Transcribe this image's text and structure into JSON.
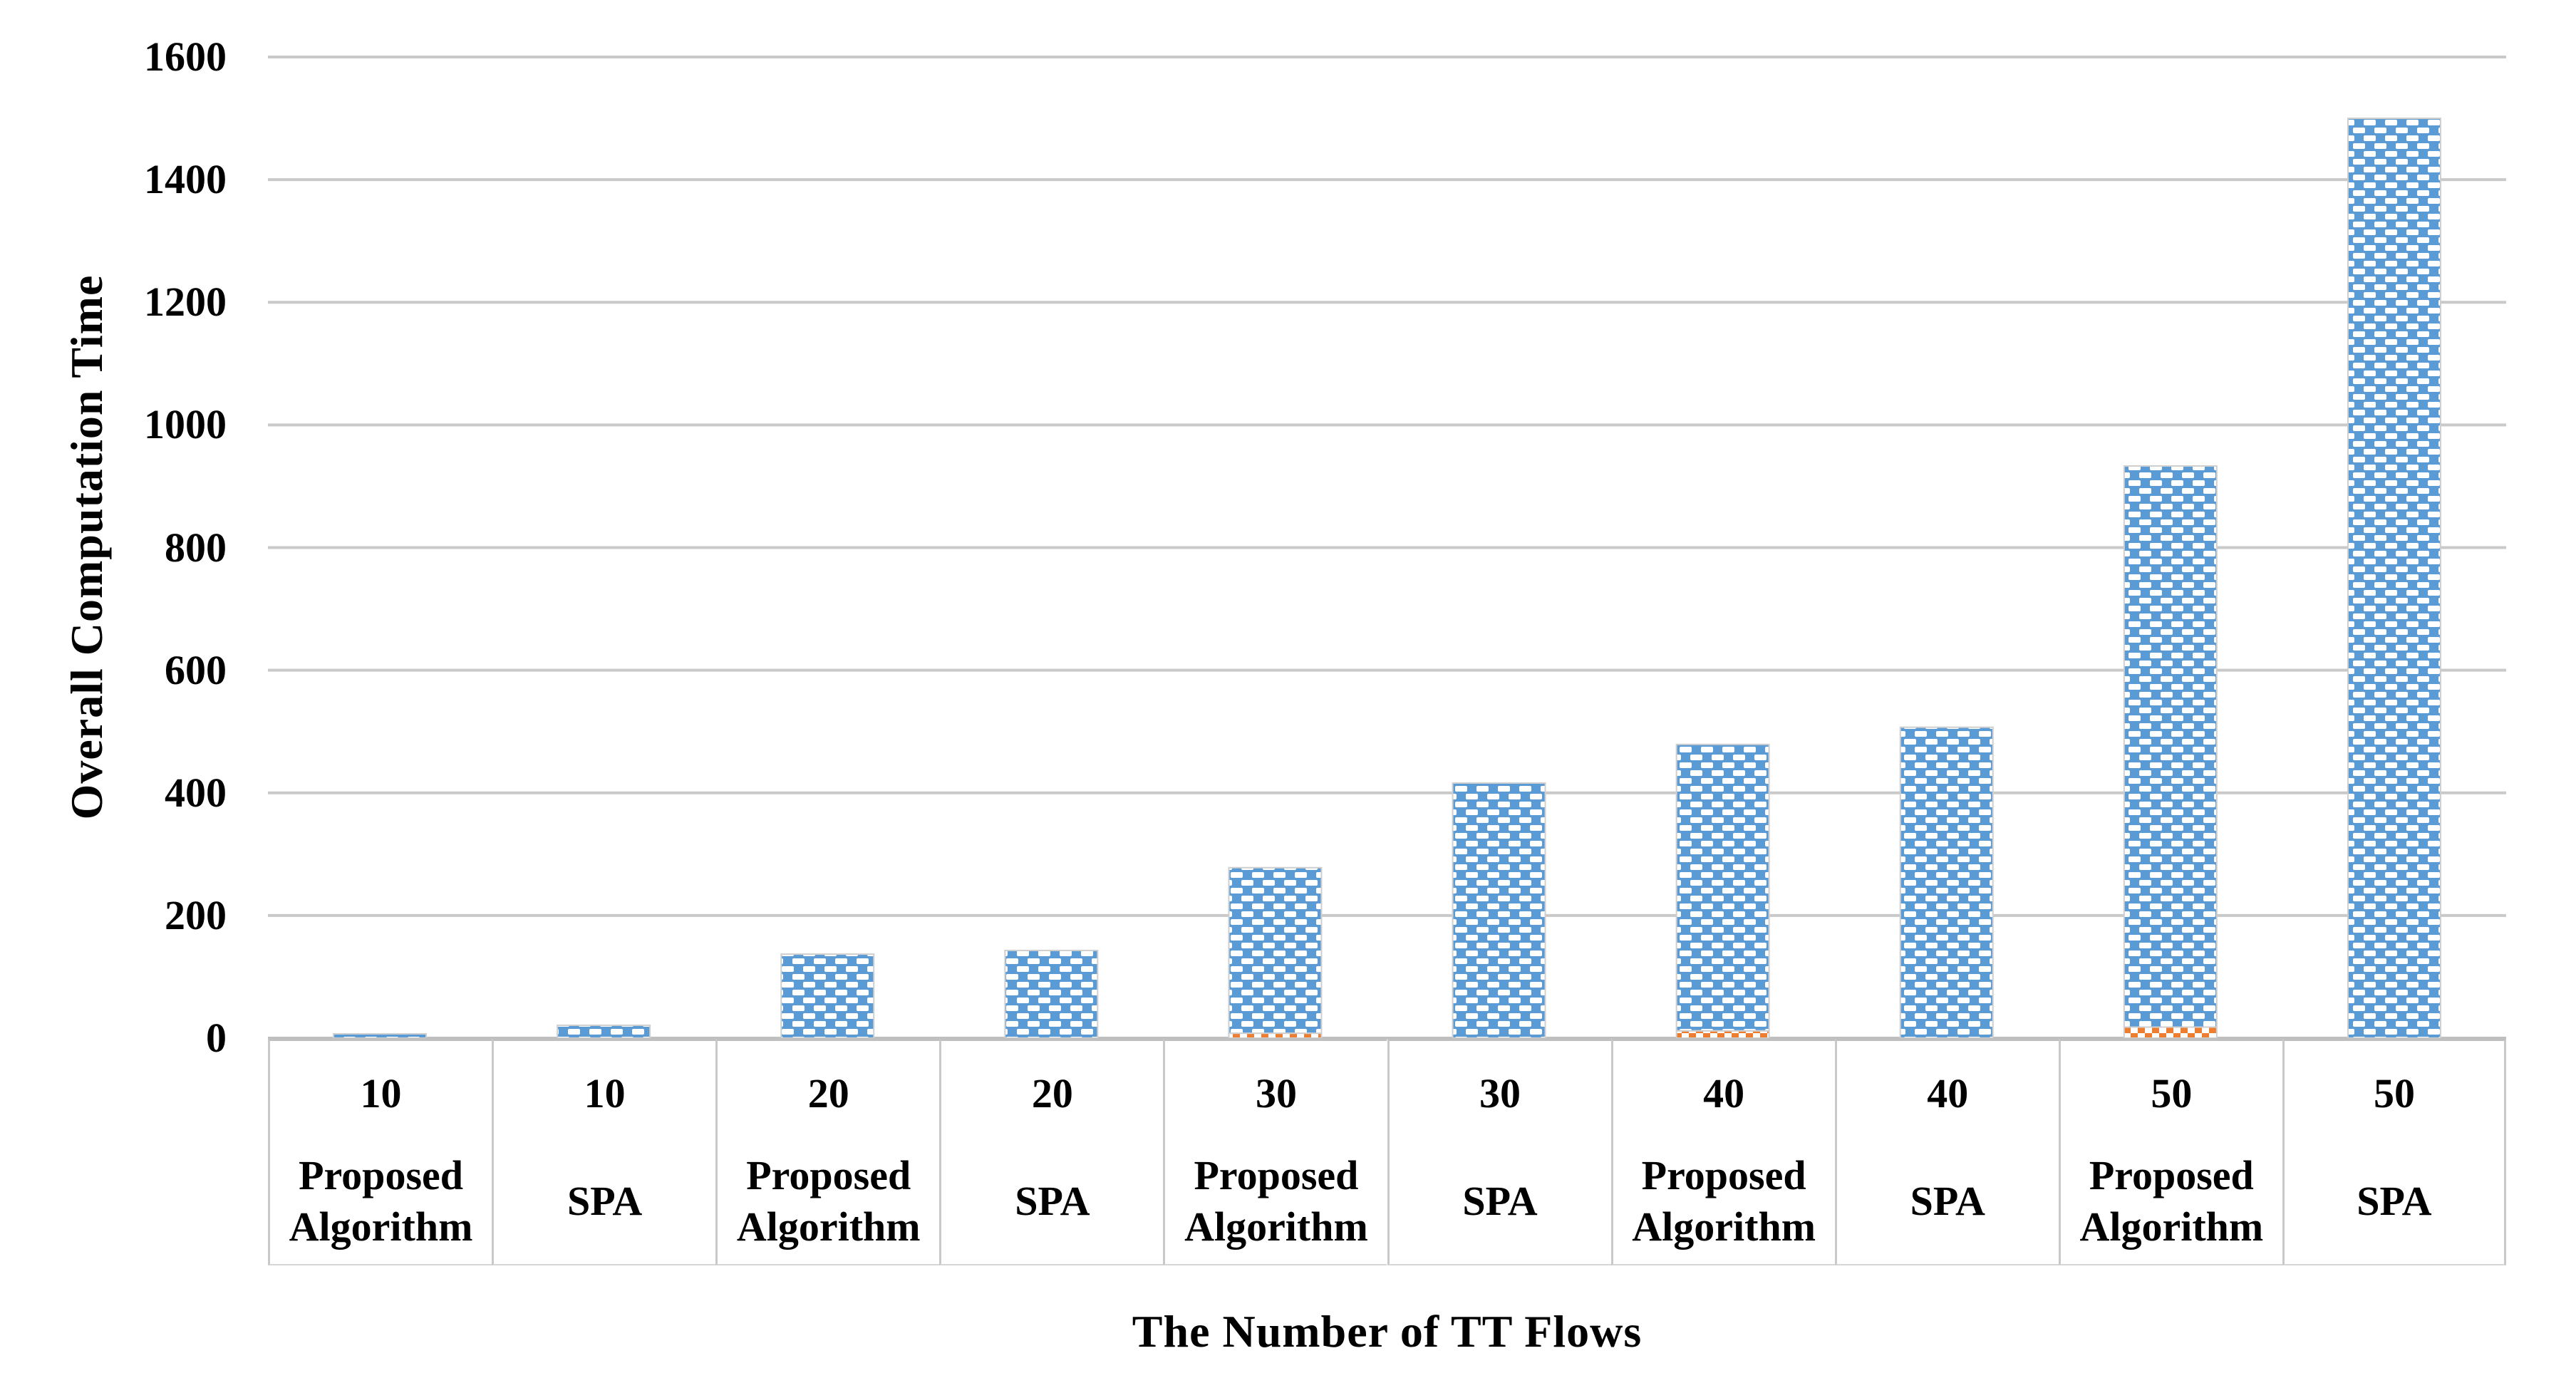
{
  "chart_data": {
    "type": "bar",
    "stacked": true,
    "title": "",
    "xlabel": "The Number of TT Flows",
    "ylabel": "Overall Computation Time",
    "ylim": [
      0,
      1600
    ],
    "yticks": [
      0,
      200,
      400,
      600,
      800,
      1000,
      1200,
      1400,
      1600
    ],
    "grid": "horizontal-only",
    "legend_position": "none",
    "categories": [
      {
        "flows": "10",
        "algorithm": "Proposed Algorithm"
      },
      {
        "flows": "10",
        "algorithm": "SPA"
      },
      {
        "flows": "20",
        "algorithm": "Proposed Algorithm"
      },
      {
        "flows": "20",
        "algorithm": "SPA"
      },
      {
        "flows": "30",
        "algorithm": "Proposed Algorithm"
      },
      {
        "flows": "30",
        "algorithm": "SPA"
      },
      {
        "flows": "40",
        "algorithm": "Proposed Algorithm"
      },
      {
        "flows": "40",
        "algorithm": "SPA"
      },
      {
        "flows": "50",
        "algorithm": "Proposed Algorithm"
      },
      {
        "flows": "50",
        "algorithm": "SPA"
      }
    ],
    "series": [
      {
        "name": "bottom-segment-orange-pattern",
        "color": "#ED7D31",
        "pattern": "orange-white-checker",
        "values": [
          0,
          0,
          0,
          0,
          8,
          0,
          12,
          0,
          18,
          0
        ]
      },
      {
        "name": "top-segment-blue-pattern",
        "color": "#5B9BD5",
        "pattern": "white-dashes-on-blue",
        "values": [
          7,
          21,
          137,
          143,
          270,
          416,
          467,
          507,
          915,
          1500
        ]
      }
    ],
    "stacked_totals": [
      7,
      21,
      137,
      143,
      278,
      416,
      479,
      507,
      933,
      1500
    ],
    "colors": {
      "bar_blue": "#5B9BD5",
      "bar_orange": "#ED7D31",
      "gridline": "#C9C9C9",
      "axis_border": "#BFBFBF",
      "text": "#000000",
      "background": "#FFFFFF"
    }
  }
}
